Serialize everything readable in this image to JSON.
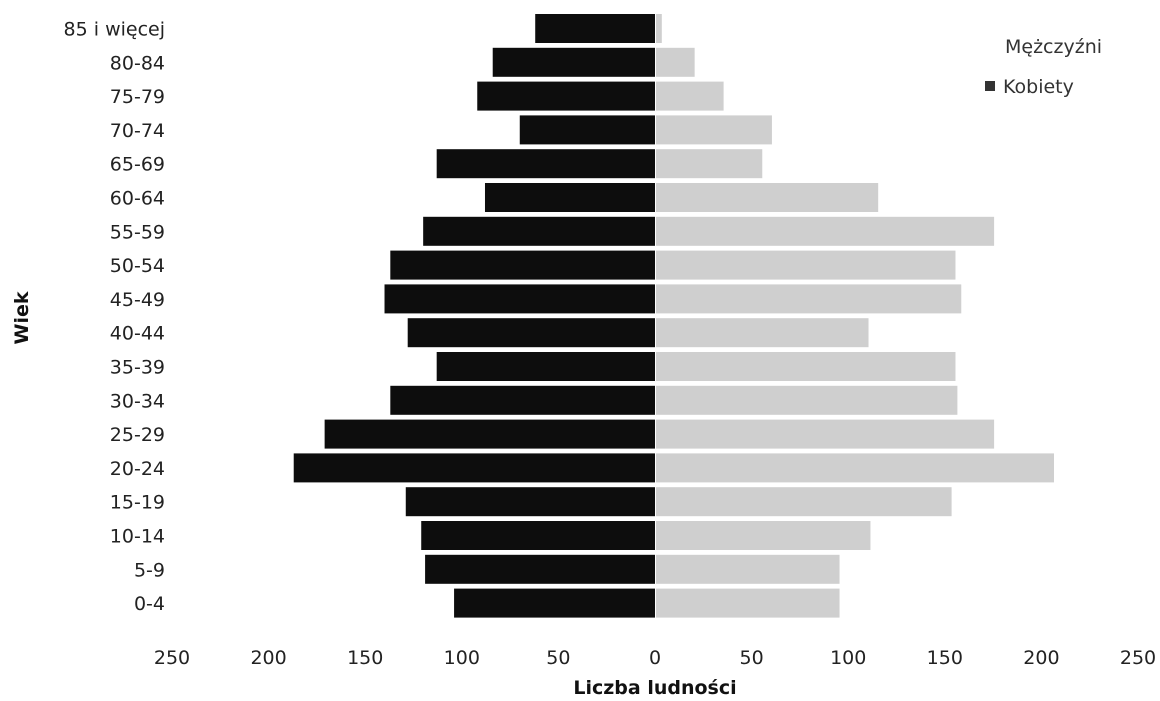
{
  "chart_data": {
    "type": "bar",
    "orientation": "horizontal",
    "title": "",
    "xlabel": "Liczba ludności",
    "ylabel": "Wiek",
    "categories": [
      "85 i więcej",
      "80-84",
      "75-79",
      "70-74",
      "65-69",
      "60-64",
      "55-59",
      "50-54",
      "45-49",
      "40-44",
      "35-39",
      "30-34",
      "25-29",
      "20-24",
      "15-19",
      "10-14",
      "5-9",
      "0-4"
    ],
    "series": [
      {
        "name": "Mężczyźni",
        "side": "left",
        "color": "#0d0d0d",
        "values": [
          62,
          84,
          92,
          70,
          113,
          88,
          120,
          137,
          140,
          128,
          113,
          137,
          171,
          187,
          129,
          121,
          119,
          104
        ]
      },
      {
        "name": "Kobiety",
        "side": "right",
        "color": "#cfcfcf",
        "values": [
          3,
          20,
          35,
          60,
          55,
          115,
          175,
          155,
          158,
          110,
          155,
          156,
          175,
          206,
          153,
          111,
          95,
          95
        ]
      }
    ],
    "xlim": [
      -250,
      250
    ],
    "x_ticks": [
      "250",
      "200",
      "150",
      "100",
      "50",
      "0",
      "50",
      "100",
      "150",
      "200",
      "250"
    ],
    "grid": false,
    "legend_position": "top-right"
  }
}
